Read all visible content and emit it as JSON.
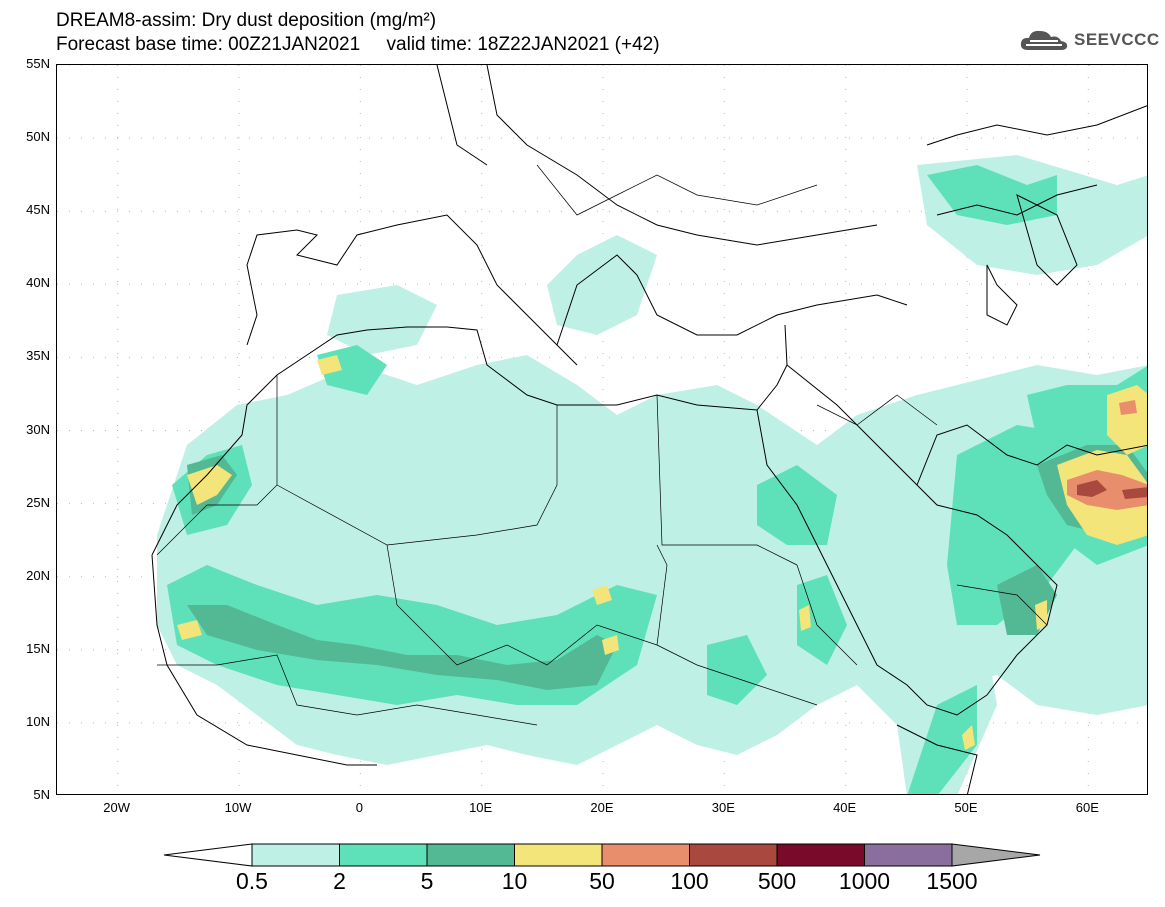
{
  "header": {
    "title_line1": "DREAM8-assim: Dry dust deposition (mg/m²)",
    "title_line2": "Forecast base time: 00Z21JAN2021     valid time: 18Z22JAN2021 (+42)",
    "logo_text": "SEEVCCC"
  },
  "map": {
    "lon_range": [
      -25,
      65
    ],
    "lat_range": [
      5,
      55
    ],
    "lat_labels": [
      "55N",
      "50N",
      "45N",
      "40N",
      "35N",
      "30N",
      "25N",
      "20N",
      "15N",
      "10N",
      "5N"
    ],
    "lat_values": [
      55,
      50,
      45,
      40,
      35,
      30,
      25,
      20,
      15,
      10,
      5
    ],
    "lon_labels": [
      "20W",
      "10W",
      "0",
      "10E",
      "20E",
      "30E",
      "40E",
      "50E",
      "60E"
    ],
    "lon_values": [
      -20,
      -10,
      0,
      10,
      20,
      30,
      40,
      50,
      60
    ],
    "grid": "dotted"
  },
  "legend": {
    "levels": [
      "0.5",
      "2",
      "5",
      "10",
      "50",
      "100",
      "500",
      "1000",
      "1500"
    ],
    "colors": [
      "#bff0e6",
      "#5ee0b8",
      "#53b894",
      "#f3e57a",
      "#e98e6c",
      "#a8483f",
      "#7a0a2a",
      "#8a6f9e",
      "#a7a7a7"
    ]
  }
}
